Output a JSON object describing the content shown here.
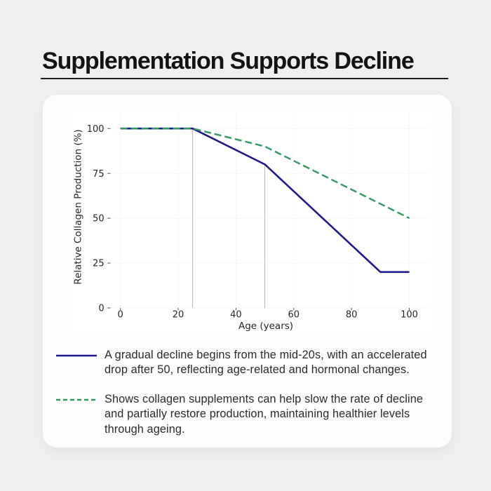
{
  "header": {
    "title": "Supplementation Supports Decline"
  },
  "theme": {
    "page_background": "#efefef",
    "card_background": "#fdfdfd",
    "title_color": "#131316",
    "text_color": "#2a2a30",
    "grid_color": "#e3e3e3",
    "annotation_line_color": "#b3b3b3",
    "tick_color": "#555555",
    "tick_label_color": "#262626"
  },
  "chart_data": {
    "type": "line",
    "title": "",
    "xlabel": "Age (years)",
    "ylabel": "Relative Collagen Production (%)",
    "xlim": [
      -3,
      106
    ],
    "ylim": [
      0,
      109
    ],
    "xticks": [
      0,
      20,
      40,
      60,
      80,
      100
    ],
    "yticks": [
      0,
      25,
      50,
      75,
      100
    ],
    "grid": true,
    "legend_position": "below",
    "series": [
      {
        "name": "natural-decline",
        "color": "#1c1a8c",
        "style": "solid",
        "points": [
          [
            0,
            100
          ],
          [
            25,
            100
          ],
          [
            50,
            80
          ],
          [
            90,
            20
          ],
          [
            100,
            20
          ]
        ]
      },
      {
        "name": "with-supplementation",
        "color": "#319a60",
        "style": "dashed",
        "points": [
          [
            0,
            100
          ],
          [
            25,
            100
          ],
          [
            50,
            90
          ],
          [
            100,
            50
          ]
        ]
      }
    ],
    "vlines": [
      {
        "x": 25,
        "y0": 0,
        "y1": 100
      },
      {
        "x": 50,
        "y0": 0,
        "y1": 80
      }
    ]
  },
  "legend": {
    "items": [
      {
        "series": "natural-decline",
        "text": "A gradual decline begins from the mid-20s, with an accelerated\ndrop after 50, reflecting age-related and hormonal changes."
      },
      {
        "series": "with-supplementation",
        "text": "Shows collagen supplements can help slow the rate of decline\nand partially restore production, maintaining healthier levels\nthrough ageing."
      }
    ]
  }
}
